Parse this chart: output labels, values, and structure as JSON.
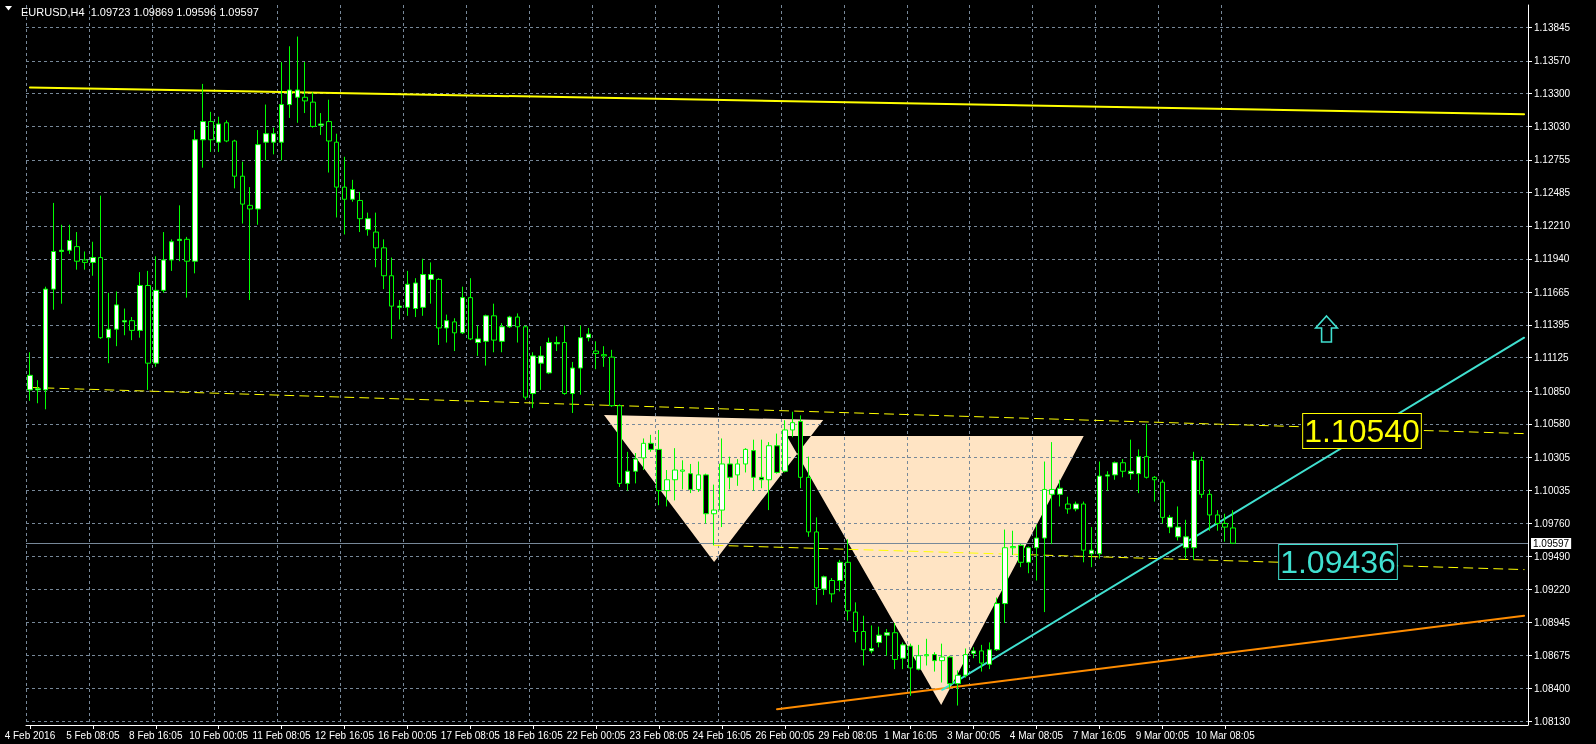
{
  "chart_data": {
    "type": "candlestick",
    "title": "EURUSD,H4  1.09723 1.09869 1.09596 1.09597",
    "color": "#00ff00",
    "grid": true,
    "marker": "none",
    "categories": [
      "4 Feb 2016",
      null,
      null,
      null,
      null,
      null,
      null,
      null,
      "5 Feb 08:05",
      null,
      null,
      null,
      null,
      null,
      null,
      null,
      "8 Feb 16:05",
      null,
      null,
      null,
      null,
      null,
      null,
      null,
      "10 Feb 00:05",
      null,
      null,
      null,
      null,
      null,
      null,
      null,
      "11 Feb 08:05",
      null,
      null,
      null,
      null,
      null,
      null,
      null,
      "12 Feb 16:05",
      null,
      null,
      null,
      null,
      null,
      null,
      null,
      "16 Feb 00:05",
      null,
      null,
      null,
      null,
      null,
      null,
      null,
      "17 Feb 08:05",
      null,
      null,
      null,
      null,
      null,
      null,
      null,
      "18 Feb 16:05",
      null,
      null,
      null,
      null,
      null,
      null,
      null,
      "22 Feb 00:05",
      null,
      null,
      null,
      null,
      null,
      null,
      null,
      "23 Feb 08:05",
      null,
      null,
      null,
      null,
      null,
      null,
      null,
      "24 Feb 16:05",
      null,
      null,
      null,
      null,
      null,
      null,
      null,
      "26 Feb 00:05",
      null,
      null,
      null,
      null,
      null,
      null,
      null,
      "29 Feb 08:05",
      null,
      null,
      null,
      null,
      null,
      null,
      null,
      "1 Mar 16:05",
      null,
      null,
      null,
      null,
      null,
      null,
      null,
      "3 Mar 00:05",
      null,
      null,
      null,
      null,
      null,
      null,
      null,
      "4 Mar 08:05",
      null,
      null,
      null,
      null,
      null,
      null,
      null,
      "7 Mar 16:05",
      null,
      null,
      null,
      null,
      null,
      null,
      null,
      "9 Mar 00:05",
      null,
      null,
      null,
      null,
      null,
      null,
      null,
      "10 Mar 08:05",
      null,
      null,
      null,
      null,
      null,
      null,
      null,
      null,
      null,
      null,
      null,
      null,
      null,
      null,
      null,
      null,
      null,
      null,
      null,
      null,
      null,
      null,
      null,
      null,
      null,
      null,
      null,
      null,
      null,
      null,
      null,
      null,
      null,
      null,
      null,
      null,
      null,
      null
    ],
    "ohlc": [
      [
        1.1086,
        1.1117,
        1.1077,
        1.1098
      ],
      [
        1.1086,
        1.1094,
        1.1075,
        1.1087
      ],
      [
        1.1086,
        1.1171,
        1.107,
        1.1169
      ],
      [
        1.1169,
        1.124,
        1.1152,
        1.12
      ],
      [
        1.12,
        1.1222,
        1.1157,
        1.1201
      ],
      [
        1.1201,
        1.1222,
        1.1198,
        1.1209
      ],
      [
        1.1204,
        1.1216,
        1.1185,
        1.1192
      ],
      [
        1.1193,
        1.12,
        1.1185,
        1.1191
      ],
      [
        1.1191,
        1.1208,
        1.118,
        1.1195
      ],
      [
        1.1195,
        1.1246,
        1.1128,
        1.1129
      ],
      [
        1.1129,
        1.1166,
        1.1108,
        1.1136
      ],
      [
        1.1136,
        1.1167,
        1.1122,
        1.1156
      ],
      [
        1.1142,
        1.1153,
        1.1131,
        1.1143
      ],
      [
        1.1143,
        1.1146,
        1.1127,
        1.1135
      ],
      [
        1.1135,
        1.1183,
        1.1129,
        1.1172
      ],
      [
        1.1172,
        1.1184,
        1.1086,
        1.1108
      ],
      [
        1.1108,
        1.1196,
        1.1105,
        1.1168
      ],
      [
        1.1168,
        1.1216,
        1.1166,
        1.1193
      ],
      [
        1.1193,
        1.121,
        1.1184,
        1.1208
      ],
      [
        1.1209,
        1.1238,
        1.1192,
        1.121
      ],
      [
        1.121,
        1.1212,
        1.1162,
        1.1192
      ],
      [
        1.1192,
        1.13,
        1.1182,
        1.1292
      ],
      [
        1.1292,
        1.1338,
        1.1269,
        1.1307
      ],
      [
        1.1307,
        1.1315,
        1.1282,
        1.1292
      ],
      [
        1.129,
        1.1311,
        1.1282,
        1.1305
      ],
      [
        1.1306,
        1.1308,
        1.129,
        1.1291
      ],
      [
        1.1291,
        1.1292,
        1.1252,
        1.1262
      ],
      [
        1.1262,
        1.1274,
        1.1223,
        1.1239
      ],
      [
        1.1238,
        1.1253,
        1.116,
        1.1235
      ],
      [
        1.1235,
        1.13,
        1.1222,
        1.1288
      ],
      [
        1.129,
        1.1321,
        1.1275,
        1.1297
      ],
      [
        1.129,
        1.1302,
        1.128,
        1.1297
      ],
      [
        1.129,
        1.1356,
        1.1275,
        1.1321
      ],
      [
        1.1321,
        1.1369,
        1.131,
        1.1333
      ],
      [
        1.1327,
        1.1377,
        1.1306,
        1.1333
      ],
      [
        1.1327,
        1.1356,
        1.1314,
        1.1324
      ],
      [
        1.1323,
        1.1331,
        1.1302,
        1.1303
      ],
      [
        1.1304,
        1.1314,
        1.1296,
        1.1305
      ],
      [
        1.1307,
        1.1325,
        1.1265,
        1.1291
      ],
      [
        1.129,
        1.1297,
        1.1228,
        1.1253
      ],
      [
        1.1253,
        1.1278,
        1.1214,
        1.1243
      ],
      [
        1.1243,
        1.1259,
        1.1241,
        1.1251
      ],
      [
        1.1242,
        1.1249,
        1.1216,
        1.1227
      ],
      [
        1.1218,
        1.1232,
        1.1213,
        1.1227
      ],
      [
        1.1216,
        1.1232,
        1.1187,
        1.1203
      ],
      [
        1.1203,
        1.121,
        1.1169,
        1.118
      ],
      [
        1.118,
        1.1195,
        1.1128,
        1.1155
      ],
      [
        1.1154,
        1.116,
        1.1144,
        1.1155
      ],
      [
        1.1154,
        1.1184,
        1.1147,
        1.1173
      ],
      [
        1.1153,
        1.1178,
        1.1146,
        1.1174
      ],
      [
        1.1154,
        1.1194,
        1.1147,
        1.1181
      ],
      [
        1.1177,
        1.1191,
        1.1157,
        1.1181
      ],
      [
        1.1177,
        1.1178,
        1.1123,
        1.1137
      ],
      [
        1.1137,
        1.1148,
        1.1125,
        1.1143
      ],
      [
        1.1142,
        1.1145,
        1.1118,
        1.1133
      ],
      [
        1.1133,
        1.1171,
        1.1132,
        1.1162
      ],
      [
        1.1162,
        1.1178,
        1.1127,
        1.1128
      ],
      [
        1.1125,
        1.1139,
        1.1114,
        1.1128
      ],
      [
        1.1126,
        1.1148,
        1.1106,
        1.1147
      ],
      [
        1.1147,
        1.1157,
        1.1117,
        1.1127
      ],
      [
        1.1126,
        1.1141,
        1.1117,
        1.1138
      ],
      [
        1.1138,
        1.1147,
        1.1137,
        1.1146
      ],
      [
        1.1146,
        1.1149,
        1.1125,
        1.1138
      ],
      [
        1.1138,
        1.1139,
        1.1078,
        1.108
      ],
      [
        1.1083,
        1.1117,
        1.1071,
        1.1114
      ],
      [
        1.1108,
        1.1122,
        1.1086,
        1.1114
      ],
      [
        1.11,
        1.1129,
        1.1099,
        1.1125
      ],
      [
        1.1124,
        1.113,
        1.1118,
        1.1125
      ],
      [
        1.1125,
        1.1139,
        1.1082,
        1.1083
      ],
      [
        1.1083,
        1.1109,
        1.1067,
        1.1104
      ],
      [
        1.1104,
        1.1139,
        1.1082,
        1.1129
      ],
      [
        1.1129,
        1.1137,
        1.1126,
        1.1132
      ],
      [
        1.1118,
        1.1126,
        1.1103,
        1.1116
      ],
      [
        1.1115,
        1.1122,
        1.1105,
        1.1114
      ],
      [
        1.1113,
        1.1119,
        1.1072,
        1.1073
      ],
      [
        1.1073,
        1.1074,
        1.1006,
        1.1009
      ],
      [
        1.1009,
        1.1035,
        1.1003,
        1.1019
      ],
      [
        1.1019,
        1.1034,
        1.1009,
        1.1029
      ],
      [
        1.103,
        1.1046,
        1.102,
        1.1042
      ],
      [
        1.1042,
        1.1049,
        1.1035,
        1.1037
      ],
      [
        1.1037,
        1.1053,
        1.0991,
        1.1003
      ],
      [
        1.1003,
        1.102,
        1.099,
        1.1012
      ],
      [
        1.1012,
        1.1038,
        1.0995,
        1.102
      ],
      [
        1.1019,
        1.1028,
        1.1004,
        1.102
      ],
      [
        1.1017,
        1.1025,
        1.1001,
        1.1004
      ],
      [
        1.1004,
        1.1027,
        1.1002,
        1.1016
      ],
      [
        1.1016,
        1.1017,
        1.0976,
        1.0984
      ],
      [
        1.0984,
        1.1008,
        1.0958,
        1.0987
      ],
      [
        1.0987,
        1.1046,
        1.0973,
        1.1025
      ],
      [
        1.1025,
        1.1031,
        1.1004,
        1.1014
      ],
      [
        1.1016,
        1.1029,
        1.1007,
        1.1025
      ],
      [
        1.1025,
        1.1038,
        1.1018,
        1.1037
      ],
      [
        1.1036,
        1.1045,
        1.1003,
        1.1014
      ],
      [
        1.1014,
        1.1045,
        1.1005,
        1.1012
      ],
      [
        1.1012,
        1.1043,
        1.0987,
        1.104
      ],
      [
        1.104,
        1.105,
        1.1017,
        1.1018
      ],
      [
        1.1019,
        1.1061,
        1.1018,
        1.1053
      ],
      [
        1.1053,
        1.1068,
        1.1047,
        1.1059
      ],
      [
        1.106,
        1.1065,
        1.1005,
        1.1014
      ],
      [
        1.1014,
        1.1031,
        1.0965,
        1.0969
      ],
      [
        1.0969,
        1.0981,
        1.0909,
        1.0923
      ],
      [
        1.0922,
        1.0933,
        1.0917,
        1.0932
      ],
      [
        1.0929,
        1.0931,
        1.0911,
        1.0918
      ],
      [
        1.0929,
        1.0946,
        1.092,
        1.0944
      ],
      [
        1.0944,
        1.0963,
        1.0896,
        1.0904
      ],
      [
        1.0903,
        1.0911,
        1.0878,
        1.0887
      ],
      [
        1.0887,
        1.09,
        1.0859,
        1.0872
      ],
      [
        1.0871,
        1.0892,
        1.0869,
        1.0873
      ],
      [
        1.0878,
        1.0891,
        1.0874,
        1.0884
      ],
      [
        1.0884,
        1.0889,
        1.0867,
        1.0886
      ],
      [
        1.0886,
        1.0894,
        1.0856,
        1.0864
      ],
      [
        1.0865,
        1.0878,
        1.0856,
        1.0876
      ],
      [
        1.0875,
        1.0877,
        1.0834,
        1.0857
      ],
      [
        1.0856,
        1.0876,
        1.0855,
        1.0867
      ],
      [
        1.0867,
        1.0881,
        1.0859,
        1.0868
      ],
      [
        1.0868,
        1.087,
        1.0854,
        1.0863
      ],
      [
        1.0863,
        1.0877,
        1.0845,
        1.0866
      ],
      [
        1.0866,
        1.0867,
        1.084,
        1.0844
      ],
      [
        1.0844,
        1.0855,
        1.0826,
        1.0851
      ],
      [
        1.0851,
        1.0873,
        1.0849,
        1.0868
      ],
      [
        1.0869,
        1.0874,
        1.0865,
        1.0871
      ],
      [
        1.0871,
        1.0876,
        1.0854,
        1.0861
      ],
      [
        1.086,
        1.0878,
        1.0856,
        1.0872
      ],
      [
        1.0872,
        1.0915,
        1.0871,
        1.091
      ],
      [
        1.091,
        1.0971,
        1.0894,
        1.0956
      ],
      [
        1.0956,
        1.097,
        1.095,
        1.0957
      ],
      [
        1.0958,
        1.0959,
        1.094,
        1.0944
      ],
      [
        1.0944,
        1.0957,
        1.0935,
        1.0956
      ],
      [
        1.0956,
        1.0975,
        1.0929,
        1.0964
      ],
      [
        1.0964,
        1.1027,
        1.0903,
        1.1004
      ],
      [
        1.1,
        1.1043,
        1.0959,
        1.1004
      ],
      [
        1.1,
        1.1012,
        1.099,
        1.1005
      ],
      [
        1.0992,
        1.0998,
        1.0984,
        1.0988
      ],
      [
        1.0988,
        1.0994,
        1.0986,
        1.0992
      ],
      [
        1.0992,
        1.0994,
        1.0944,
        1.0954
      ],
      [
        1.0951,
        1.0973,
        1.094,
        1.0954
      ],
      [
        1.0951,
        1.1027,
        1.0947,
        1.1015
      ],
      [
        1.1015,
        1.1019,
        1.1003,
        1.1016
      ],
      [
        1.1016,
        1.1027,
        1.1012,
        1.1026
      ],
      [
        1.1026,
        1.1029,
        1.1014,
        1.1019
      ],
      [
        1.1017,
        1.1045,
        1.1012,
        1.1019
      ],
      [
        1.1017,
        1.1037,
        1.1001,
        1.1031
      ],
      [
        1.1031,
        1.1058,
        1.1013,
        1.1014
      ],
      [
        1.1014,
        1.1015,
        1.0994,
        1.1012
      ],
      [
        1.101,
        1.1012,
        1.0976,
        1.0981
      ],
      [
        1.0973,
        1.0983,
        1.0968,
        1.0981
      ],
      [
        1.0965,
        1.099,
        1.0962,
        1.0973
      ],
      [
        1.0956,
        1.0979,
        1.0947,
        1.0965
      ],
      [
        1.0956,
        1.1035,
        1.0946,
        1.1028
      ],
      [
        1.1028,
        1.1031,
        1.0997,
        1.1
      ],
      [
        1.1,
        1.1004,
        1.097,
        1.0983
      ],
      [
        1.0983,
        1.0987,
        1.097,
        1.0976
      ],
      [
        1.0976,
        1.0984,
        1.0961,
        1.0973
      ],
      [
        1.09723,
        1.09869,
        1.09596,
        1.09597
      ],
      null,
      null,
      null,
      null,
      null,
      null,
      null,
      null,
      null,
      null,
      null,
      null,
      null,
      null,
      null,
      null,
      null,
      null,
      null,
      null,
      null,
      null,
      null,
      null,
      null,
      null,
      null,
      null,
      null,
      null,
      null,
      null,
      null,
      null,
      null,
      null,
      null
    ],
    "series": [
      {
        "type": "line",
        "color": "#ffff00",
        "line_style": "solid",
        "values": [
          1.1335,
          null,
          null,
          null,
          null,
          null,
          null,
          null,
          null,
          null,
          null,
          null,
          null,
          null,
          null,
          null,
          null,
          null,
          null,
          null,
          null,
          null,
          null,
          null,
          null,
          null,
          null,
          null,
          null,
          null,
          null,
          null,
          null,
          null,
          null,
          null,
          null,
          null,
          null,
          null,
          null,
          null,
          null,
          null,
          null,
          null,
          null,
          null,
          null,
          null,
          null,
          null,
          null,
          null,
          null,
          null,
          null,
          null,
          null,
          null,
          null,
          null,
          null,
          null,
          null,
          null,
          null,
          null,
          null,
          null,
          null,
          null,
          null,
          null,
          null,
          null,
          null,
          null,
          null,
          null,
          null,
          null,
          null,
          null,
          null,
          null,
          null,
          null,
          null,
          null,
          null,
          null,
          null,
          null,
          null,
          null,
          null,
          null,
          null,
          null,
          null,
          null,
          null,
          null,
          null,
          null,
          null,
          null,
          null,
          null,
          null,
          null,
          null,
          null,
          null,
          null,
          null,
          null,
          null,
          null,
          null,
          null,
          null,
          null,
          null,
          null,
          null,
          null,
          null,
          null,
          null,
          null,
          null,
          null,
          null,
          null,
          null,
          null,
          null,
          null,
          null,
          null,
          null,
          null,
          null,
          null,
          null,
          null,
          null,
          null,
          null,
          null,
          null,
          null,
          null,
          null,
          null,
          null,
          null,
          null,
          null,
          null,
          null,
          null,
          null,
          null,
          null,
          null,
          null,
          null,
          null,
          null,
          null,
          null,
          null,
          null,
          null,
          null,
          null,
          null,
          null,
          null,
          null,
          null,
          null,
          null,
          null,
          null,
          null,
          null,
          1.1313
        ]
      },
      {
        "type": "line",
        "color": "#ffff00",
        "line_style": "dashed",
        "values": [
          1.1088,
          null,
          null,
          null,
          null,
          null,
          null,
          null,
          null,
          null,
          null,
          null,
          null,
          null,
          null,
          null,
          null,
          null,
          null,
          null,
          null,
          null,
          null,
          null,
          null,
          null,
          null,
          null,
          null,
          null,
          null,
          null,
          null,
          null,
          null,
          null,
          null,
          null,
          null,
          null,
          null,
          null,
          null,
          null,
          null,
          null,
          null,
          null,
          null,
          null,
          null,
          null,
          null,
          null,
          null,
          null,
          null,
          null,
          null,
          null,
          null,
          null,
          null,
          null,
          null,
          null,
          null,
          null,
          null,
          null,
          null,
          null,
          null,
          null,
          null,
          null,
          null,
          null,
          null,
          null,
          null,
          null,
          null,
          null,
          null,
          null,
          null,
          null,
          null,
          null,
          null,
          null,
          null,
          null,
          null,
          null,
          null,
          null,
          null,
          null,
          null,
          null,
          null,
          null,
          null,
          null,
          null,
          null,
          null,
          null,
          null,
          null,
          null,
          null,
          null,
          null,
          null,
          null,
          null,
          null,
          null,
          null,
          null,
          null,
          null,
          null,
          null,
          null,
          null,
          null,
          null,
          null,
          null,
          null,
          null,
          null,
          null,
          null,
          null,
          null,
          null,
          null,
          null,
          null,
          null,
          null,
          null,
          null,
          null,
          null,
          null,
          null,
          null,
          null,
          null,
          null,
          null,
          null,
          null,
          null,
          null,
          null,
          null,
          null,
          null,
          null,
          null,
          null,
          null,
          null,
          null,
          null,
          null,
          null,
          null,
          null,
          null,
          null,
          null,
          null,
          null,
          null,
          null,
          null,
          null,
          null,
          null,
          null,
          null,
          null,
          1.105
        ]
      },
      {
        "type": "line",
        "color": "#ffff00",
        "line_style": "dashed",
        "values": [
          null,
          null,
          null,
          null,
          null,
          null,
          null,
          null,
          null,
          null,
          null,
          null,
          null,
          null,
          null,
          null,
          null,
          null,
          null,
          null,
          null,
          null,
          null,
          null,
          null,
          null,
          null,
          null,
          null,
          null,
          null,
          null,
          null,
          null,
          null,
          null,
          null,
          null,
          null,
          null,
          null,
          null,
          null,
          null,
          null,
          null,
          null,
          null,
          null,
          null,
          null,
          null,
          null,
          null,
          null,
          null,
          null,
          null,
          null,
          null,
          null,
          null,
          null,
          null,
          null,
          null,
          null,
          null,
          null,
          null,
          null,
          null,
          null,
          null,
          null,
          null,
          null,
          null,
          null,
          null,
          null,
          null,
          null,
          null,
          null,
          null,
          null,
          1.0958,
          null,
          null,
          null,
          null,
          null,
          null,
          null,
          null,
          null,
          null,
          null,
          null,
          null,
          null,
          null,
          null,
          null,
          null,
          null,
          null,
          null,
          null,
          null,
          null,
          null,
          null,
          null,
          null,
          null,
          null,
          null,
          null,
          null,
          null,
          null,
          null,
          null,
          null,
          null,
          null,
          null,
          null,
          null,
          null,
          null,
          null,
          null,
          null,
          null,
          null,
          null,
          null,
          null,
          null,
          null,
          null,
          null,
          null,
          null,
          null,
          null,
          null,
          null,
          null,
          null,
          null,
          null,
          null,
          null,
          null,
          null,
          null,
          null,
          null,
          null,
          null,
          null,
          null,
          null,
          null,
          null,
          null,
          null,
          null,
          null,
          null,
          null,
          null,
          null,
          null,
          null,
          null,
          null,
          null,
          null,
          null,
          null,
          null,
          null,
          null,
          null,
          null,
          1.0938
        ]
      },
      {
        "type": "line",
        "color": "#ff8c00",
        "line_style": "solid",
        "values": [
          null,
          null,
          null,
          null,
          null,
          null,
          null,
          null,
          null,
          null,
          null,
          null,
          null,
          null,
          null,
          null,
          null,
          null,
          null,
          null,
          null,
          null,
          null,
          null,
          null,
          null,
          null,
          null,
          null,
          null,
          null,
          null,
          null,
          null,
          null,
          null,
          null,
          null,
          null,
          null,
          null,
          null,
          null,
          null,
          null,
          null,
          null,
          null,
          null,
          null,
          null,
          null,
          null,
          null,
          null,
          null,
          null,
          null,
          null,
          null,
          null,
          null,
          null,
          null,
          null,
          null,
          null,
          null,
          null,
          null,
          null,
          null,
          null,
          null,
          null,
          null,
          null,
          null,
          null,
          null,
          null,
          null,
          null,
          null,
          null,
          null,
          null,
          null,
          null,
          null,
          null,
          null,
          null,
          null,
          null,
          1.0823,
          null,
          null,
          null,
          null,
          null,
          null,
          null,
          null,
          null,
          null,
          null,
          null,
          null,
          null,
          null,
          null,
          null,
          null,
          null,
          null,
          null,
          null,
          null,
          null,
          null,
          null,
          null,
          null,
          null,
          null,
          null,
          null,
          null,
          null,
          null,
          null,
          null,
          null,
          null,
          null,
          null,
          null,
          null,
          null,
          null,
          null,
          null,
          null,
          null,
          null,
          null,
          null,
          null,
          null,
          null,
          null,
          null,
          null,
          null,
          null,
          null,
          null,
          null,
          null,
          null,
          null,
          null,
          null,
          null,
          null,
          null,
          null,
          null,
          null,
          null,
          null,
          null,
          null,
          null,
          null,
          null,
          null,
          null,
          null,
          null,
          null,
          null,
          null,
          null,
          null,
          null,
          null,
          null,
          null,
          1.09
        ]
      },
      {
        "type": "line",
        "color": "#40e0d0",
        "line_style": "solid",
        "values": [
          null,
          null,
          null,
          null,
          null,
          null,
          null,
          null,
          null,
          null,
          null,
          null,
          null,
          null,
          null,
          null,
          null,
          null,
          null,
          null,
          null,
          null,
          null,
          null,
          null,
          null,
          null,
          null,
          null,
          null,
          null,
          null,
          null,
          null,
          null,
          null,
          null,
          null,
          null,
          null,
          null,
          null,
          null,
          null,
          null,
          null,
          null,
          null,
          null,
          null,
          null,
          null,
          null,
          null,
          null,
          null,
          null,
          null,
          null,
          null,
          null,
          null,
          null,
          null,
          null,
          null,
          null,
          null,
          null,
          null,
          null,
          null,
          null,
          null,
          null,
          null,
          null,
          null,
          null,
          null,
          null,
          null,
          null,
          null,
          null,
          null,
          null,
          null,
          null,
          null,
          null,
          null,
          null,
          null,
          null,
          null,
          null,
          null,
          null,
          null,
          null,
          null,
          null,
          null,
          null,
          null,
          null,
          null,
          null,
          null,
          null,
          null,
          null,
          null,
          null,
          null,
          1.0839,
          null,
          null,
          null,
          null,
          null,
          null,
          null,
          null,
          null,
          null,
          null,
          null,
          null,
          null,
          null,
          null,
          null,
          null,
          null,
          null,
          null,
          null,
          null,
          null,
          null,
          null,
          null,
          null,
          null,
          null,
          null,
          null,
          null,
          null,
          null,
          null,
          null,
          null,
          null,
          null,
          null,
          null,
          null,
          null,
          null,
          null,
          null,
          null,
          null,
          null,
          null,
          null,
          null,
          null,
          null,
          null,
          null,
          null,
          null,
          null,
          null,
          null,
          null,
          null,
          null,
          null,
          null,
          null,
          null,
          null,
          null,
          null,
          null,
          1.1129
        ]
      }
    ],
    "ylim": [
      1.081,
      1.1403
    ],
    "yticks": [
      1.13845,
      {
        "value": 1.1357,
        "label": "1.13570"
      },
      {
        "value": 1.133,
        "label": "1.13300"
      },
      {
        "value": 1.1303,
        "label": "1.13030"
      },
      1.12755,
      1.12485,
      {
        "value": 1.1221,
        "label": "1.12210"
      },
      {
        "value": 1.1194,
        "label": "1.11940"
      },
      1.11665,
      1.11395,
      1.11125,
      {
        "value": 1.1085,
        "label": "1.10850"
      },
      {
        "value": 1.1058,
        "label": "1.10580"
      },
      1.10305,
      1.10035,
      {
        "value": 1.0976,
        "label": "1.09760"
      },
      {
        "value": 1.0949,
        "label": "1.09490"
      },
      {
        "value": 1.0922,
        "label": "1.09220"
      },
      1.08945,
      1.08675,
      {
        "value": 1.084,
        "label": "1.08400"
      },
      {
        "value": 1.0813,
        "label": "1.08130"
      }
    ],
    "ref_lines": [
      {
        "axis": "y",
        "value": 1.09597,
        "label": "1.09597",
        "color": "#778899"
      }
    ],
    "annotations": [
      "1.10540",
      "1.09436"
    ]
  }
}
